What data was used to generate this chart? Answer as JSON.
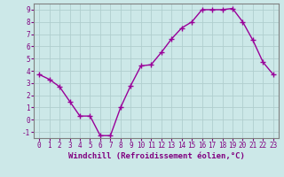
{
  "x": [
    0,
    1,
    2,
    3,
    4,
    5,
    6,
    7,
    8,
    9,
    10,
    11,
    12,
    13,
    14,
    15,
    16,
    17,
    18,
    19,
    20,
    21,
    22,
    23
  ],
  "y": [
    3.7,
    3.3,
    2.7,
    1.5,
    0.3,
    0.3,
    -1.3,
    -1.3,
    1.0,
    2.8,
    4.4,
    4.5,
    5.5,
    6.6,
    7.5,
    8.0,
    9.0,
    9.0,
    9.0,
    9.1,
    8.0,
    6.5,
    4.7,
    3.7
  ],
  "line_color": "#990099",
  "marker": "+",
  "marker_size": 4,
  "marker_linewidth": 1.0,
  "linewidth": 1.0,
  "xlabel": "Windchill (Refroidissement éolien,°C)",
  "xlim": [
    -0.5,
    23.5
  ],
  "ylim": [
    -1.5,
    9.5
  ],
  "xticks": [
    0,
    1,
    2,
    3,
    4,
    5,
    6,
    7,
    8,
    9,
    10,
    11,
    12,
    13,
    14,
    15,
    16,
    17,
    18,
    19,
    20,
    21,
    22,
    23
  ],
  "yticks": [
    -1,
    0,
    1,
    2,
    3,
    4,
    5,
    6,
    7,
    8,
    9
  ],
  "background_color": "#cce8e8",
  "grid_color": "#b0cece",
  "tick_color": "#800080",
  "tick_label_fontsize": 5.5,
  "xlabel_fontsize": 6.5,
  "spine_color": "#808080"
}
